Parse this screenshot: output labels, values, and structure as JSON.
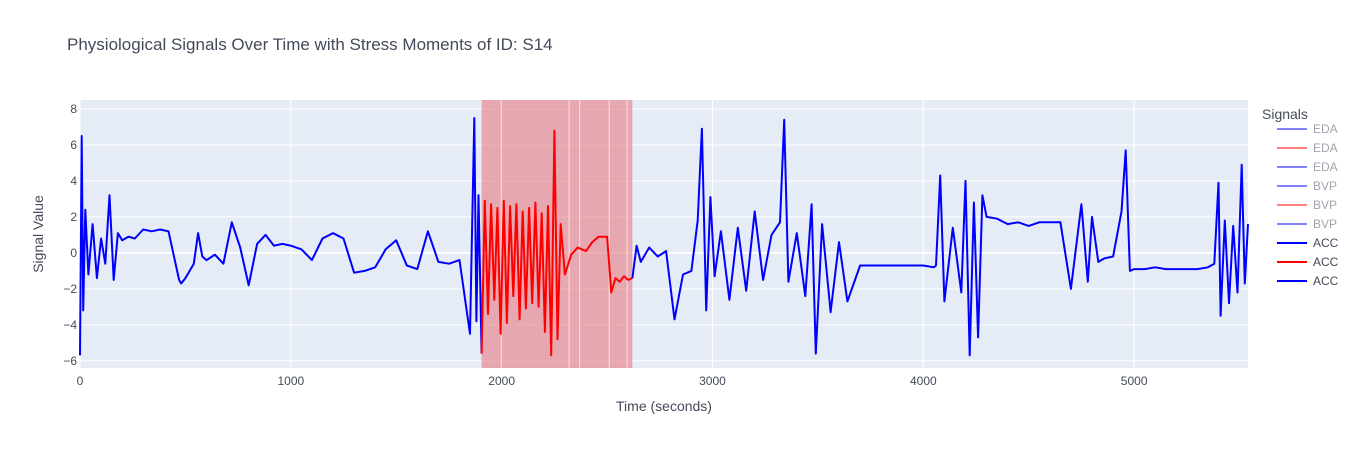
{
  "chart_data": {
    "type": "line",
    "title": "Physiological Signals Over Time with Stress Moments of ID: S14",
    "xlabel": "Time (seconds)",
    "ylabel": "Signal Value",
    "xlim": [
      0,
      5540
    ],
    "ylim": [
      -6.4,
      8.5
    ],
    "x_ticks": [
      0,
      1000,
      2000,
      3000,
      4000,
      5000
    ],
    "x_tick_labels": [
      "0",
      "1000",
      "2000",
      "3000",
      "4000",
      "5000"
    ],
    "y_ticks": [
      -6,
      -4,
      -2,
      0,
      2,
      4,
      6,
      8
    ],
    "y_tick_labels": [
      "−6",
      "−4",
      "−2",
      "0",
      "2",
      "4",
      "6",
      "8"
    ],
    "grid": true,
    "legend": {
      "title": "Signals",
      "placement": "right",
      "entries": [
        {
          "name": "EDA",
          "color": "#0000ff",
          "faded": true
        },
        {
          "name": "EDA",
          "color": "#ff0000",
          "faded": true
        },
        {
          "name": "EDA",
          "color": "#0000ff",
          "faded": true
        },
        {
          "name": "BVP",
          "color": "#0000ff",
          "faded": true
        },
        {
          "name": "BVP",
          "color": "#ff0000",
          "faded": true
        },
        {
          "name": "BVP",
          "color": "#0000ff",
          "faded": true
        },
        {
          "name": "ACC",
          "color": "#0000ff",
          "faded": false
        },
        {
          "name": "ACC",
          "color": "#ff0000",
          "faded": false
        },
        {
          "name": "ACC",
          "color": "#0000ff",
          "faded": false
        }
      ]
    },
    "stress_bands": [
      {
        "x0": 1905,
        "x1": 2600,
        "color": "#e8838a"
      },
      {
        "x0": 2600,
        "x1": 2620,
        "color": "#e8838a"
      }
    ],
    "series": [
      {
        "name": "ACC",
        "color": "#0000ff",
        "x": [
          0,
          8,
          15,
          25,
          40,
          60,
          80,
          100,
          120,
          140,
          160,
          180,
          200,
          230,
          260,
          300,
          340,
          380,
          420,
          470,
          480,
          500,
          540,
          560,
          580,
          600,
          640,
          680,
          720,
          760,
          800,
          840,
          880,
          920,
          960,
          1000,
          1050,
          1100,
          1150,
          1200,
          1250,
          1300,
          1350,
          1400,
          1450,
          1500,
          1550,
          1600,
          1650,
          1700,
          1750,
          1800,
          1850,
          1870,
          1880,
          1890,
          1905
        ],
        "values": [
          -5.7,
          6.5,
          -3.2,
          2.4,
          -1.2,
          1.6,
          -1.4,
          0.8,
          -0.6,
          3.2,
          -1.5,
          1.1,
          0.7,
          0.9,
          0.8,
          1.3,
          1.2,
          1.3,
          1.2,
          -1.5,
          -1.7,
          -1.4,
          -0.6,
          1.1,
          -0.2,
          -0.4,
          -0.1,
          -0.6,
          1.7,
          0.3,
          -1.8,
          0.5,
          1.0,
          0.4,
          0.5,
          0.4,
          0.2,
          -0.4,
          0.8,
          1.1,
          0.8,
          -1.1,
          -1.0,
          -0.8,
          0.2,
          0.7,
          -0.7,
          -0.9,
          1.2,
          -0.5,
          -0.6,
          -0.4,
          -4.5,
          7.5,
          -3.8,
          3.2,
          -5.6
        ]
      },
      {
        "name": "ACC",
        "color": "#ff0000",
        "x": [
          1905,
          1920,
          1935,
          1950,
          1965,
          1980,
          1995,
          2010,
          2025,
          2040,
          2055,
          2070,
          2085,
          2100,
          2115,
          2130,
          2145,
          2160,
          2175,
          2190,
          2205,
          2220,
          2235,
          2250,
          2265,
          2280,
          2300,
          2330,
          2360,
          2400,
          2430,
          2460,
          2500,
          2520,
          2540,
          2560,
          2580,
          2600,
          2620
        ],
        "values": [
          -5.6,
          2.9,
          -3.4,
          2.7,
          -2.6,
          2.5,
          -4.5,
          2.9,
          -3.9,
          2.6,
          -2.4,
          2.7,
          -3.7,
          2.3,
          -3.1,
          2.5,
          -2.8,
          2.8,
          -3.0,
          2.2,
          -4.4,
          2.6,
          -5.7,
          6.8,
          -4.8,
          1.6,
          -1.2,
          -0.1,
          0.3,
          0.1,
          0.6,
          0.9,
          0.9,
          -2.2,
          -1.4,
          -1.6,
          -1.3,
          -1.5,
          -1.4
        ]
      },
      {
        "name": "ACC",
        "color": "#0000ff",
        "x": [
          2620,
          2640,
          2660,
          2700,
          2740,
          2780,
          2820,
          2860,
          2900,
          2930,
          2950,
          2970,
          2990,
          3010,
          3040,
          3080,
          3120,
          3160,
          3200,
          3240,
          3280,
          3320,
          3340,
          3360,
          3400,
          3440,
          3470,
          3490,
          3520,
          3560,
          3600,
          3640,
          3700,
          3800,
          3900,
          4000,
          4050,
          4060,
          4080,
          4100,
          4140,
          4180,
          4200,
          4220,
          4240,
          4260,
          4280,
          4300,
          4350,
          4400,
          4450,
          4500,
          4550,
          4600,
          4650,
          4700,
          4750,
          4780,
          4800,
          4830,
          4860,
          4900,
          4940,
          4960,
          4980,
          5000,
          5050,
          5100,
          5150,
          5200,
          5250,
          5300,
          5350,
          5380,
          5400,
          5410,
          5430,
          5450,
          5470,
          5490,
          5510,
          5525,
          5540
        ],
        "values": [
          -1.4,
          0.4,
          -0.5,
          0.3,
          -0.2,
          0.1,
          -3.7,
          -1.2,
          -1.0,
          1.8,
          6.9,
          -3.2,
          3.1,
          -1.3,
          1.2,
          -2.6,
          1.4,
          -2.1,
          2.3,
          -1.5,
          1.0,
          1.7,
          7.4,
          -1.6,
          1.1,
          -2.4,
          2.7,
          -5.6,
          1.6,
          -3.3,
          0.6,
          -2.7,
          -0.7,
          -0.7,
          -0.7,
          -0.7,
          -0.8,
          -0.7,
          4.3,
          -2.7,
          1.4,
          -2.2,
          4.0,
          -5.7,
          2.8,
          -4.7,
          3.2,
          2.0,
          1.9,
          1.6,
          1.7,
          1.5,
          1.7,
          1.7,
          1.7,
          -2.0,
          2.7,
          -1.6,
          2.0,
          -0.5,
          -0.3,
          -0.2,
          2.3,
          5.7,
          -1.0,
          -0.9,
          -0.9,
          -0.8,
          -0.9,
          -0.9,
          -0.9,
          -0.9,
          -0.8,
          -0.6,
          3.9,
          -3.5,
          1.8,
          -2.8,
          1.5,
          -2.2,
          4.9,
          -1.7,
          1.6
        ]
      }
    ]
  }
}
